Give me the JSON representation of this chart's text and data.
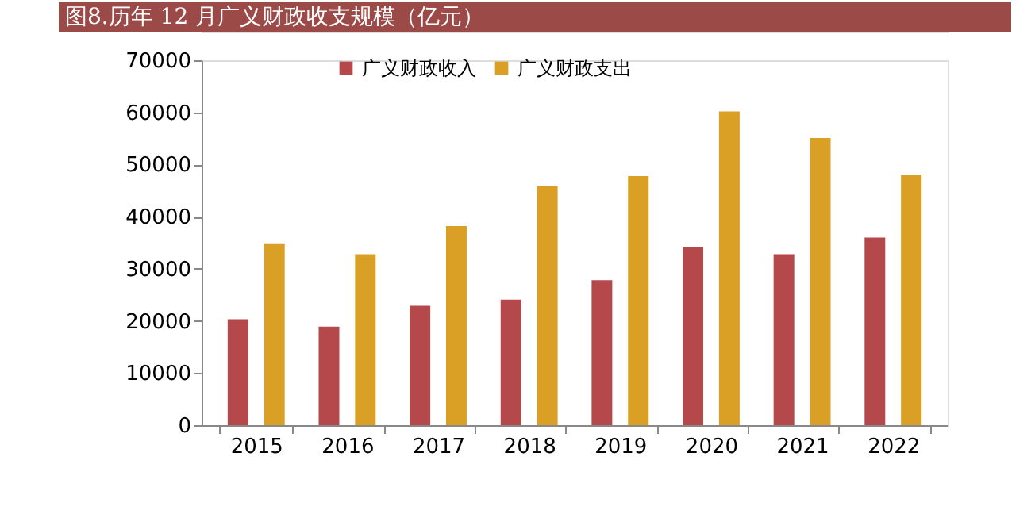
{
  "chart_data": {
    "type": "bar",
    "title": "图8.历年 12 月广义财政收支规模（亿元）",
    "categories": [
      "2015",
      "2016",
      "2017",
      "2018",
      "2019",
      "2020",
      "2021",
      "2022"
    ],
    "series": [
      {
        "name": "广义财政收入",
        "color": "#b5484a",
        "values": [
          20300,
          18900,
          22900,
          24100,
          27800,
          34100,
          32800,
          36000
        ]
      },
      {
        "name": "广义财政支出",
        "color": "#daa026",
        "values": [
          34900,
          32800,
          38200,
          45900,
          47800,
          60200,
          55100,
          48000
        ]
      }
    ],
    "ylim": [
      0,
      70000
    ],
    "yticks": [
      0,
      10000,
      20000,
      30000,
      40000,
      50000,
      60000,
      70000
    ],
    "grid": false,
    "legend": "top"
  }
}
